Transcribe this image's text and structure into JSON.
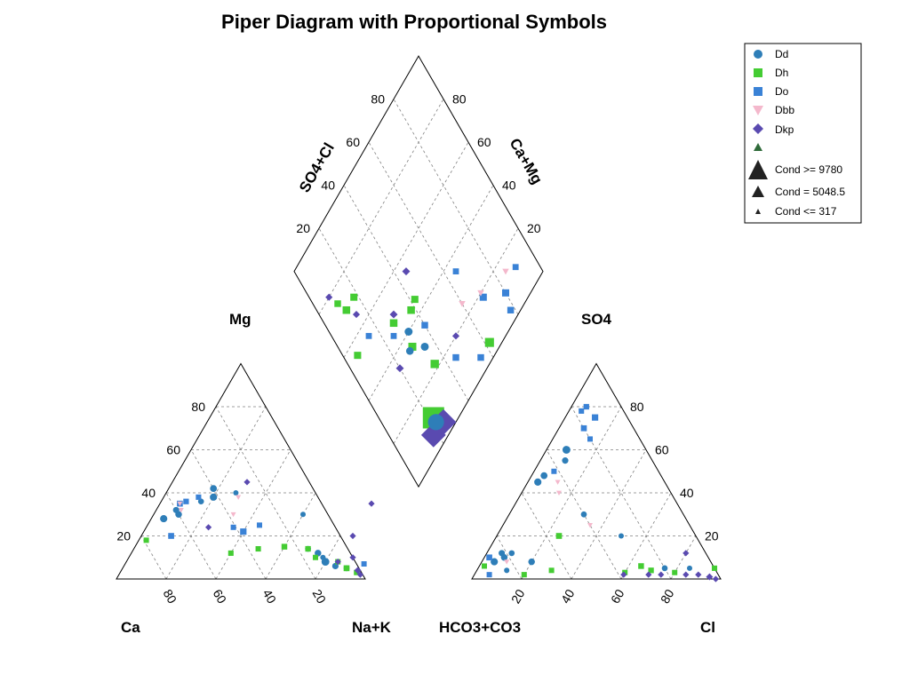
{
  "chart_data": {
    "type": "scatter",
    "subtype": "piper",
    "title": "Piper Diagram with Proportional Symbols",
    "cation_labels": {
      "left": "Ca",
      "right": "Na+K",
      "top": "Mg"
    },
    "anion_labels": {
      "left": "HCO3+CO3",
      "right": "Cl",
      "top": "SO4"
    },
    "diamond_labels": {
      "upper_left": "SO4+Cl",
      "upper_right": "Ca+Mg"
    },
    "ticks": [
      "20",
      "40",
      "60",
      "80"
    ],
    "grid": true,
    "legend_position": "top-right",
    "series": [
      {
        "name": "Dd",
        "marker": "circle",
        "color": "#2E7EB8"
      },
      {
        "name": "Dh",
        "marker": "square",
        "color": "#44CC33"
      },
      {
        "name": "Do",
        "marker": "square",
        "color": "#3A82D6"
      },
      {
        "name": "Dbb",
        "marker": "triangle-down",
        "color": "#F4B8CC"
      },
      {
        "name": "Dkp",
        "marker": "diamond",
        "color": "#5A4AB0"
      }
    ],
    "size_legend": [
      {
        "label": "Cond >= 9780",
        "value": 9780
      },
      {
        "label": "Cond = 5048.5",
        "value": 5048.5
      },
      {
        "label": "Cond <= 317",
        "value": 317
      }
    ],
    "samples": [
      {
        "s": "Dd",
        "mg": 28,
        "nak": 5,
        "so4": 8,
        "cl": 5,
        "cond": 2500
      },
      {
        "s": "Dd",
        "mg": 30,
        "nak": 10,
        "so4": 10,
        "cl": 8,
        "cond": 2000
      },
      {
        "s": "Dd",
        "mg": 32,
        "nak": 8,
        "so4": 12,
        "cl": 6,
        "cond": 1800
      },
      {
        "s": "Dd",
        "mg": 38,
        "nak": 20,
        "so4": 45,
        "cl": 4,
        "cond": 2500
      },
      {
        "s": "Dd",
        "mg": 42,
        "nak": 18,
        "so4": 48,
        "cl": 5,
        "cond": 2200
      },
      {
        "s": "Dd",
        "mg": 36,
        "nak": 16,
        "so4": 12,
        "cl": 10,
        "cond": 1500
      },
      {
        "s": "Dd",
        "mg": 40,
        "nak": 28,
        "so4": 20,
        "cl": 50,
        "cond": 1000
      },
      {
        "s": "Dd",
        "mg": 14,
        "nak": 70,
        "so4": 5,
        "cl": 75,
        "cond": 1500
      },
      {
        "s": "Dd",
        "mg": 12,
        "nak": 75,
        "so4": 8,
        "cl": 20,
        "cond": 2000
      },
      {
        "s": "Dd",
        "mg": 10,
        "nak": 78,
        "so4": 4,
        "cl": 12,
        "cond": 1200
      },
      {
        "s": "Dd",
        "mg": 8,
        "nak": 80,
        "so4": 60,
        "cl": 8,
        "cond": 3000
      },
      {
        "s": "Dd",
        "mg": 6,
        "nak": 85,
        "so4": 55,
        "cl": 10,
        "cond": 1800
      },
      {
        "s": "Dd",
        "mg": 5,
        "nak": 90,
        "so4": 30,
        "cl": 30,
        "cond": 1500
      },
      {
        "s": "Dd",
        "mg": 30,
        "nak": 60,
        "so4": 5,
        "cl": 85,
        "cond": 800
      },
      {
        "s": "Dh",
        "mg": 18,
        "nak": 3,
        "so4": 6,
        "cl": 2,
        "cond": 900
      },
      {
        "s": "Dh",
        "mg": 14,
        "nak": 50,
        "so4": 3,
        "cl": 60,
        "cond": 1200
      },
      {
        "s": "Dh",
        "mg": 15,
        "nak": 60,
        "so4": 6,
        "cl": 65,
        "cond": 1400
      },
      {
        "s": "Dh",
        "mg": 14,
        "nak": 70,
        "so4": 4,
        "cl": 70,
        "cond": 1300
      },
      {
        "s": "Dh",
        "mg": 10,
        "nak": 75,
        "so4": 3,
        "cl": 80,
        "cond": 1000
      },
      {
        "s": "Dh",
        "mg": 8,
        "nak": 85,
        "so4": 5,
        "cl": 95,
        "cond": 1200
      },
      {
        "s": "Dh",
        "mg": 5,
        "nak": 90,
        "so4": 20,
        "cl": 25,
        "cond": 1500
      },
      {
        "s": "Dh",
        "mg": 3,
        "nak": 95,
        "so4": 4,
        "cl": 30,
        "cond": 1000
      },
      {
        "s": "Dh",
        "mg": 12,
        "nak": 40,
        "so4": 2,
        "cl": 20,
        "cond": 1200
      },
      {
        "s": "Do",
        "mg": 35,
        "nak": 8,
        "so4": 70,
        "cl": 10,
        "cond": 1500
      },
      {
        "s": "Do",
        "mg": 38,
        "nak": 14,
        "so4": 78,
        "cl": 5,
        "cond": 1200
      },
      {
        "s": "Do",
        "mg": 36,
        "nak": 10,
        "so4": 80,
        "cl": 6,
        "cond": 1300
      },
      {
        "s": "Do",
        "mg": 24,
        "nak": 35,
        "so4": 65,
        "cl": 15,
        "cond": 1100
      },
      {
        "s": "Do",
        "mg": 25,
        "nak": 45,
        "so4": 50,
        "cl": 8,
        "cond": 1000
      },
      {
        "s": "Do",
        "mg": 22,
        "nak": 40,
        "so4": 75,
        "cl": 12,
        "cond": 1800
      },
      {
        "s": "Do",
        "mg": 20,
        "nak": 12,
        "so4": 10,
        "cl": 2,
        "cond": 1500
      },
      {
        "s": "Do",
        "mg": 7,
        "nak": 96,
        "so4": 2,
        "cl": 6,
        "cond": 1000
      },
      {
        "s": "Dbb",
        "mg": 38,
        "nak": 30,
        "so4": 45,
        "cl": 12,
        "cond": 900
      },
      {
        "s": "Dbb",
        "mg": 35,
        "nak": 8,
        "so4": 40,
        "cl": 15,
        "cond": 800
      },
      {
        "s": "Dbb",
        "mg": 30,
        "nak": 32,
        "so4": 25,
        "cl": 35,
        "cond": 900
      },
      {
        "s": "Dbb",
        "mg": 32,
        "nak": 10,
        "so4": 8,
        "cl": 10,
        "cond": 700
      },
      {
        "s": "Dkp",
        "mg": 45,
        "nak": 30,
        "so4": 2,
        "cl": 70,
        "cond": 800
      },
      {
        "s": "Dkp",
        "mg": 24,
        "nak": 25,
        "so4": 2,
        "cl": 85,
        "cond": 900
      },
      {
        "s": "Dkp",
        "mg": 20,
        "nak": 85,
        "so4": 12,
        "cl": 80,
        "cond": 700
      },
      {
        "s": "Dkp",
        "mg": 8,
        "nak": 85,
        "so4": 2,
        "cl": 90,
        "cond": 900
      },
      {
        "s": "Dkp",
        "mg": 4,
        "nak": 95,
        "so4": 1,
        "cl": 95,
        "cond": 1500
      },
      {
        "s": "Dkp",
        "mg": 2,
        "nak": 97,
        "so4": 2,
        "cl": 75,
        "cond": 1000
      },
      {
        "s": "Dkp",
        "mg": 10,
        "nak": 90,
        "so4": 0,
        "cl": 98,
        "cond": 1200
      },
      {
        "s": "Dkp",
        "mg": 35,
        "nak": 85,
        "so4": 2,
        "cl": 60,
        "cond": 800
      }
    ],
    "diamond_points": [
      {
        "s": "Dh",
        "anion": 22,
        "cation": 10,
        "cond": 9780
      },
      {
        "s": "Dkp",
        "anion": 25,
        "cation": 5,
        "cond": 9780
      },
      {
        "s": "Dkp",
        "anion": 18,
        "cation": 6,
        "cond": 9000
      },
      {
        "s": "Dd",
        "anion": 22,
        "cation": 8,
        "cond": 5048.5
      },
      {
        "s": "Dh",
        "anion": 62,
        "cation": 5,
        "cond": 1200
      },
      {
        "s": "Dh",
        "anion": 35,
        "cation": 22,
        "cond": 1000
      },
      {
        "s": "Dh",
        "anion": 30,
        "cation": 35,
        "cond": 900
      },
      {
        "s": "Dh",
        "anion": 28,
        "cation": 48,
        "cond": 800
      },
      {
        "s": "Dh",
        "anion": 38,
        "cation": 44,
        "cond": 800
      },
      {
        "s": "Dh",
        "anion": 12,
        "cation": 70,
        "cond": 800
      },
      {
        "s": "Dh",
        "anion": 18,
        "cation": 70,
        "cond": 700
      },
      {
        "s": "Dh",
        "anion": 42,
        "cation": 45,
        "cond": 700
      },
      {
        "s": "Dh",
        "anion": 6,
        "cation": 55,
        "cond": 700
      },
      {
        "s": "Dh",
        "anion": 10,
        "cation": 75,
        "cond": 600
      },
      {
        "s": "Dd",
        "anion": 32,
        "cation": 40,
        "cond": 900
      },
      {
        "s": "Dd",
        "anion": 35,
        "cation": 30,
        "cond": 900
      },
      {
        "s": "Dd",
        "anion": 28,
        "cation": 35,
        "cond": 800
      },
      {
        "s": "Do",
        "anion": 80,
        "cation": 10,
        "cond": 700
      },
      {
        "s": "Do",
        "anion": 70,
        "cation": 18,
        "cond": 700
      },
      {
        "s": "Do",
        "anion": 78,
        "cation": 4,
        "cond": 600
      },
      {
        "s": "Do",
        "anion": 55,
        "cation": 5,
        "cond": 600
      },
      {
        "s": "Do",
        "anion": 45,
        "cation": 15,
        "cond": 600
      },
      {
        "s": "Do",
        "anion": 40,
        "cation": 35,
        "cond": 600
      },
      {
        "s": "Do",
        "anion": 25,
        "cation": 45,
        "cond": 500
      },
      {
        "s": "Do",
        "anion": 15,
        "cation": 55,
        "cond": 500
      },
      {
        "s": "Do",
        "anion": 65,
        "cation": 35,
        "cond": 500
      },
      {
        "s": "Do",
        "anion": 90,
        "cation": 12,
        "cond": 500
      },
      {
        "s": "Dbb",
        "anion": 70,
        "cation": 20,
        "cond": 600
      },
      {
        "s": "Dbb",
        "anion": 60,
        "cation": 25,
        "cond": 600
      },
      {
        "s": "Dbb",
        "anion": 85,
        "cation": 15,
        "cond": 600
      },
      {
        "s": "Dkp",
        "anion": 20,
        "cation": 35,
        "cond": 600
      },
      {
        "s": "Dkp",
        "anion": 45,
        "cation": 55,
        "cond": 600
      },
      {
        "s": "Dkp",
        "anion": 30,
        "cation": 50,
        "cond": 600
      },
      {
        "s": "Dkp",
        "anion": 15,
        "cation": 65,
        "cond": 500
      },
      {
        "s": "Dkp",
        "anion": 50,
        "cation": 20,
        "cond": 500
      },
      {
        "s": "Dkp",
        "anion": 8,
        "cation": 80,
        "cond": 500
      }
    ]
  }
}
